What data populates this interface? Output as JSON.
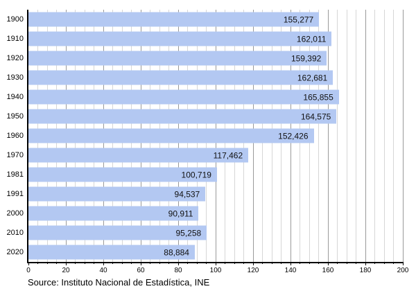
{
  "chart_data": {
    "type": "bar",
    "orientation": "horizontal",
    "title": "",
    "xlabel": "",
    "ylabel": "",
    "categories": [
      "1900",
      "1910",
      "1920",
      "1930",
      "1940",
      "1950",
      "1960",
      "1970",
      "1981",
      "1991",
      "2000",
      "2010",
      "2020"
    ],
    "values": [
      155277,
      162011,
      159392,
      162681,
      165855,
      164575,
      152426,
      117462,
      100719,
      94537,
      90911,
      95258,
      88884
    ],
    "value_labels": [
      "155,277",
      "162,011",
      "159,392",
      "162,681",
      "165,855",
      "164,575",
      "152,426",
      "117,462",
      "100,719",
      "94,537",
      "90,911",
      "95,258",
      "88,884"
    ],
    "xlim": [
      0,
      200
    ],
    "x_axis_unit": "thousands",
    "x_major_tick_step": 20,
    "x_minor_tick_step": 5,
    "grid": true,
    "legend": "none",
    "colors": {
      "bar_fill": "#b3c8f2",
      "grid_minor": "#d6d6d6",
      "grid_major": "#999999",
      "axis": "#000000",
      "value_text": "#111111"
    }
  },
  "source": {
    "text": "Source: Instituto Nacional de Estadística, INE"
  }
}
